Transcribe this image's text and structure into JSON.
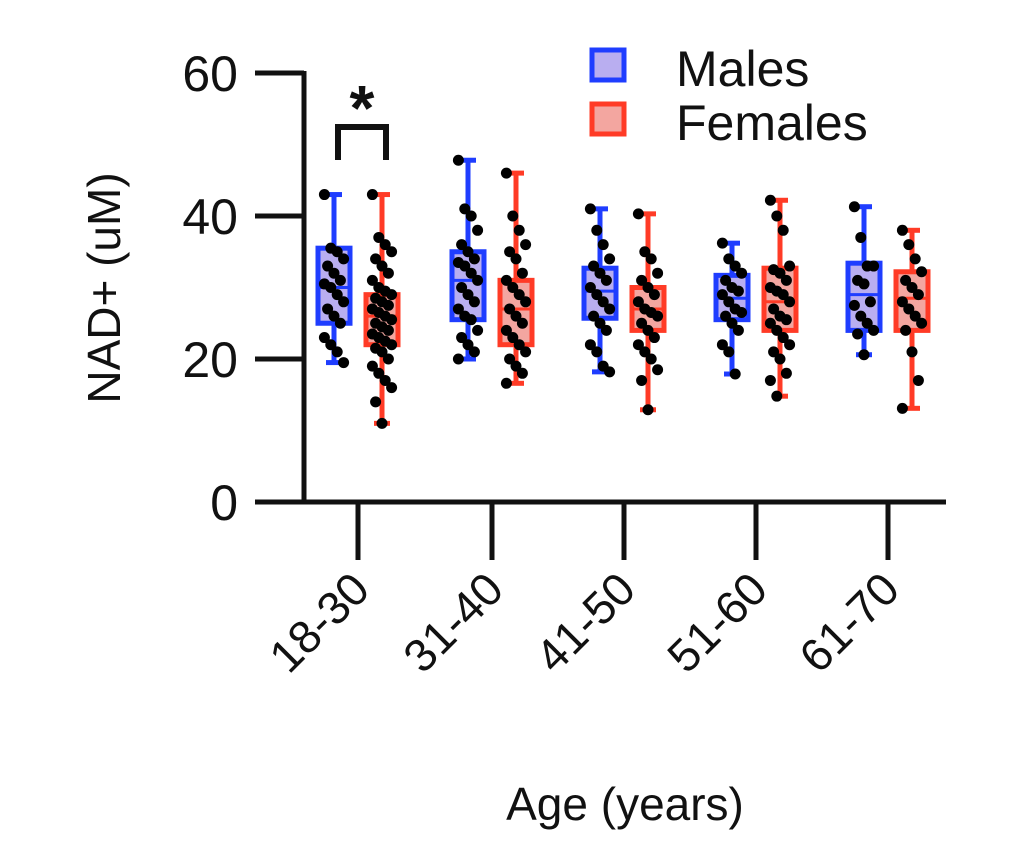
{
  "chart_data": {
    "type": "box",
    "title": "",
    "xlabel": "Age (years)",
    "ylabel": "NAD+ (uM)",
    "ylim": [
      0,
      60
    ],
    "yticks": [
      0,
      20,
      40,
      60
    ],
    "grid": false,
    "categories": [
      "18-30",
      "31-40",
      "41-50",
      "51-60",
      "61-70"
    ],
    "legend": {
      "placement": "top-right",
      "entries": [
        {
          "name": "Males",
          "edge_color": "#1f3dff",
          "fill_color": "#b9aef0"
        },
        {
          "name": "Females",
          "edge_color": "#ff3b26",
          "fill_color": "#f3a6a0"
        }
      ]
    },
    "series": [
      {
        "name": "Males",
        "boxes": [
          {
            "category": "18-30",
            "min": 19.5,
            "q1": 25.0,
            "median": 30.0,
            "q3": 35.5,
            "max": 43.0
          },
          {
            "category": "31-40",
            "min": 20.0,
            "q1": 25.5,
            "median": 31.0,
            "q3": 35.0,
            "max": 47.8
          },
          {
            "category": "41-50",
            "min": 18.2,
            "q1": 25.7,
            "median": 29.5,
            "q3": 32.7,
            "max": 41.0
          },
          {
            "category": "51-60",
            "min": 17.9,
            "q1": 25.5,
            "median": 28.5,
            "q3": 31.7,
            "max": 36.2
          },
          {
            "category": "61-70",
            "min": 20.6,
            "q1": 24.0,
            "median": 29.0,
            "q3": 33.4,
            "max": 41.3
          }
        ],
        "points": [
          [
            43.0,
            35.5,
            35.0,
            34.0,
            33.0,
            32.0,
            31.0,
            30.5,
            30.0,
            29.0,
            28.0,
            27.0,
            26.0,
            25.0,
            23.0,
            22.0,
            21.0,
            19.5
          ],
          [
            47.8,
            41.0,
            40.0,
            38.0,
            36.0,
            35.0,
            34.0,
            33.5,
            33.0,
            32.0,
            31.0,
            30.0,
            29.0,
            28.0,
            27.0,
            26.0,
            25.5,
            24.0,
            23.0,
            22.0,
            21.0,
            20.0
          ],
          [
            41.0,
            38.0,
            36.0,
            34.0,
            33.0,
            32.0,
            31.0,
            30.0,
            29.0,
            28.0,
            27.0,
            26.0,
            25.0,
            24.0,
            22.0,
            21.0,
            19.0,
            18.2
          ],
          [
            36.2,
            34.0,
            33.0,
            32.0,
            31.0,
            30.0,
            29.5,
            29.0,
            28.0,
            27.0,
            26.5,
            26.0,
            25.0,
            24.0,
            22.0,
            21.0,
            17.9
          ],
          [
            41.3,
            37.0,
            33.0,
            33.0,
            31.0,
            30.5,
            28.0,
            27.5,
            26.0,
            25.0,
            24.0,
            23.5,
            20.6
          ]
        ]
      },
      {
        "name": "Females",
        "boxes": [
          {
            "category": "18-30",
            "min": 11.0,
            "q1": 22.0,
            "median": 26.0,
            "q3": 29.0,
            "max": 43.0
          },
          {
            "category": "31-40",
            "min": 16.6,
            "q1": 22.0,
            "median": 27.0,
            "q3": 31.0,
            "max": 46.0
          },
          {
            "category": "41-50",
            "min": 12.9,
            "q1": 24.0,
            "median": 27.0,
            "q3": 30.0,
            "max": 40.3
          },
          {
            "category": "51-60",
            "min": 14.8,
            "q1": 24.0,
            "median": 28.0,
            "q3": 32.7,
            "max": 42.2
          },
          {
            "category": "61-70",
            "min": 13.1,
            "q1": 24.0,
            "median": 28.5,
            "q3": 32.2,
            "max": 38.0
          }
        ],
        "points": [
          [
            43.0,
            37.0,
            36.0,
            35.0,
            34.0,
            33.0,
            32.0,
            31.0,
            30.0,
            29.5,
            29.0,
            28.5,
            28.0,
            27.5,
            27.0,
            26.5,
            26.0,
            25.5,
            25.0,
            24.5,
            24.0,
            23.5,
            23.0,
            22.5,
            22.0,
            21.5,
            21.0,
            20.0,
            19.0,
            18.0,
            17.0,
            16.0,
            14.0,
            11.0
          ],
          [
            46.0,
            40.0,
            38.0,
            36.0,
            35.0,
            34.0,
            32.0,
            31.0,
            30.0,
            29.0,
            28.0,
            27.0,
            26.0,
            25.0,
            24.0,
            23.0,
            22.0,
            21.0,
            20.0,
            19.0,
            18.0,
            16.6
          ],
          [
            40.3,
            35.0,
            34.0,
            32.0,
            31.0,
            30.0,
            29.0,
            28.0,
            27.0,
            26.5,
            26.0,
            25.0,
            24.0,
            23.0,
            22.0,
            21.0,
            20.0,
            18.5,
            17.0,
            12.9
          ],
          [
            42.2,
            40.0,
            38.0,
            33.0,
            32.5,
            32.0,
            31.0,
            30.0,
            29.5,
            29.0,
            28.0,
            27.0,
            26.0,
            25.5,
            25.0,
            24.0,
            23.0,
            22.0,
            21.0,
            20.0,
            18.0,
            17.0,
            14.8
          ],
          [
            38.0,
            36.0,
            34.0,
            32.2,
            31.0,
            30.0,
            29.0,
            28.0,
            27.0,
            26.0,
            25.0,
            24.0,
            21.0,
            17.0,
            13.1
          ]
        ]
      }
    ],
    "annotations": [
      {
        "type": "significance",
        "label": "*",
        "category": "18-30",
        "between": [
          "Males",
          "Females"
        ]
      }
    ]
  }
}
